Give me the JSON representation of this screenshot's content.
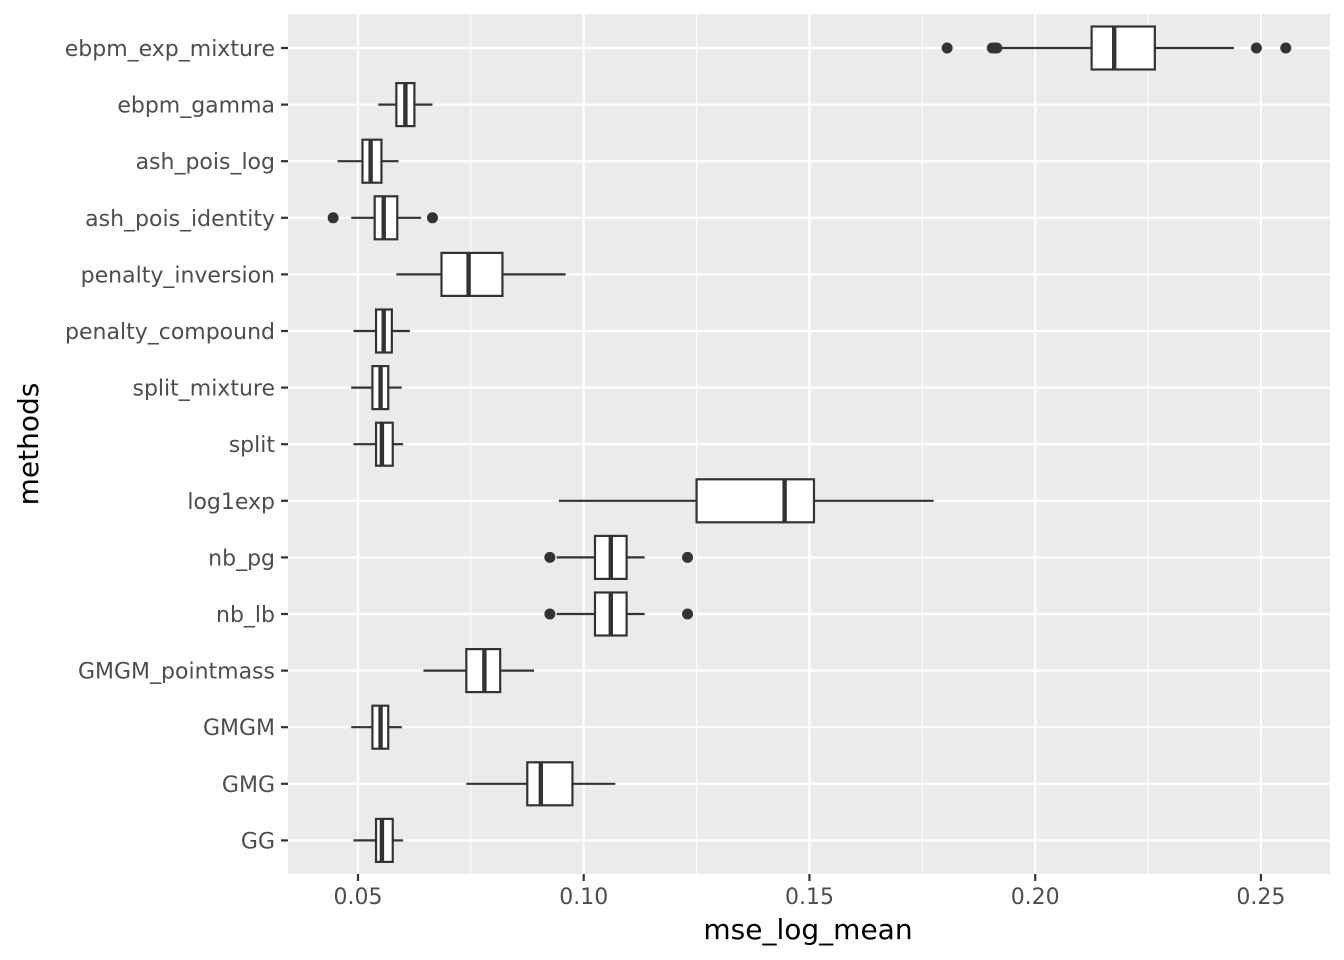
{
  "chart_data": {
    "type": "boxplot",
    "orientation": "horizontal",
    "title": "",
    "xlabel": "mse_log_mean",
    "ylabel": "methods",
    "xlim": [
      0.0345,
      0.2653
    ],
    "x_ticks": [
      0.05,
      0.1,
      0.15,
      0.2,
      0.25
    ],
    "x_tick_labels": [
      "0.05",
      "0.10",
      "0.15",
      "0.20",
      "0.25"
    ],
    "grid": true,
    "colors": {
      "panel": "#EBEBEB",
      "grid": "#FFFFFF",
      "box_line": "#333333",
      "box_fill": "#FFFFFF",
      "text": "#4D4D4D"
    },
    "categories": [
      "ebpm_exp_mixture",
      "ebpm_gamma",
      "ash_pois_log",
      "ash_pois_identity",
      "penalty_inversion",
      "penalty_compound",
      "split_mixture",
      "split",
      "log1exp",
      "nb_pg",
      "nb_lb",
      "GMGM_pointmass",
      "GMGM",
      "GMG",
      "GG"
    ],
    "boxes": [
      {
        "name": "ebpm_exp_mixture",
        "whisker_low": 0.192,
        "q1": 0.2125,
        "median": 0.2175,
        "q3": 0.2265,
        "whisker_high": 0.244,
        "outliers": [
          0.1805,
          0.1905,
          0.191,
          0.1915,
          0.249,
          0.2555
        ]
      },
      {
        "name": "ebpm_gamma",
        "whisker_low": 0.0545,
        "q1": 0.0585,
        "median": 0.0605,
        "q3": 0.0625,
        "whisker_high": 0.0665,
        "outliers": []
      },
      {
        "name": "ash_pois_log",
        "whisker_low": 0.0455,
        "q1": 0.051,
        "median": 0.0528,
        "q3": 0.0552,
        "whisker_high": 0.059,
        "outliers": []
      },
      {
        "name": "ash_pois_identity",
        "whisker_low": 0.0485,
        "q1": 0.0537,
        "median": 0.0557,
        "q3": 0.0587,
        "whisker_high": 0.064,
        "outliers": [
          0.0445,
          0.0665
        ]
      },
      {
        "name": "penalty_inversion",
        "whisker_low": 0.0585,
        "q1": 0.0685,
        "median": 0.0745,
        "q3": 0.082,
        "whisker_high": 0.096,
        "outliers": []
      },
      {
        "name": "penalty_compound",
        "whisker_low": 0.049,
        "q1": 0.054,
        "median": 0.0557,
        "q3": 0.0575,
        "whisker_high": 0.0615,
        "outliers": []
      },
      {
        "name": "split_mixture",
        "whisker_low": 0.0485,
        "q1": 0.0532,
        "median": 0.055,
        "q3": 0.0567,
        "whisker_high": 0.0597,
        "outliers": []
      },
      {
        "name": "split",
        "whisker_low": 0.049,
        "q1": 0.054,
        "median": 0.0553,
        "q3": 0.0577,
        "whisker_high": 0.06,
        "outliers": []
      },
      {
        "name": "log1exp",
        "whisker_low": 0.0945,
        "q1": 0.125,
        "median": 0.1445,
        "q3": 0.151,
        "whisker_high": 0.1775,
        "outliers": []
      },
      {
        "name": "nb_pg",
        "whisker_low": 0.094,
        "q1": 0.1025,
        "median": 0.106,
        "q3": 0.1095,
        "whisker_high": 0.1135,
        "outliers": [
          0.0925,
          0.123
        ]
      },
      {
        "name": "nb_lb",
        "whisker_low": 0.094,
        "q1": 0.1025,
        "median": 0.106,
        "q3": 0.1095,
        "whisker_high": 0.1135,
        "outliers": [
          0.0925,
          0.123
        ]
      },
      {
        "name": "GMGM_pointmass",
        "whisker_low": 0.0645,
        "q1": 0.074,
        "median": 0.078,
        "q3": 0.0815,
        "whisker_high": 0.089,
        "outliers": []
      },
      {
        "name": "GMGM",
        "whisker_low": 0.0485,
        "q1": 0.0532,
        "median": 0.055,
        "q3": 0.0567,
        "whisker_high": 0.0597,
        "outliers": []
      },
      {
        "name": "GMG",
        "whisker_low": 0.074,
        "q1": 0.0875,
        "median": 0.0905,
        "q3": 0.0975,
        "whisker_high": 0.107,
        "outliers": []
      },
      {
        "name": "GG",
        "whisker_low": 0.049,
        "q1": 0.054,
        "median": 0.0553,
        "q3": 0.0577,
        "whisker_high": 0.06,
        "outliers": []
      }
    ]
  }
}
